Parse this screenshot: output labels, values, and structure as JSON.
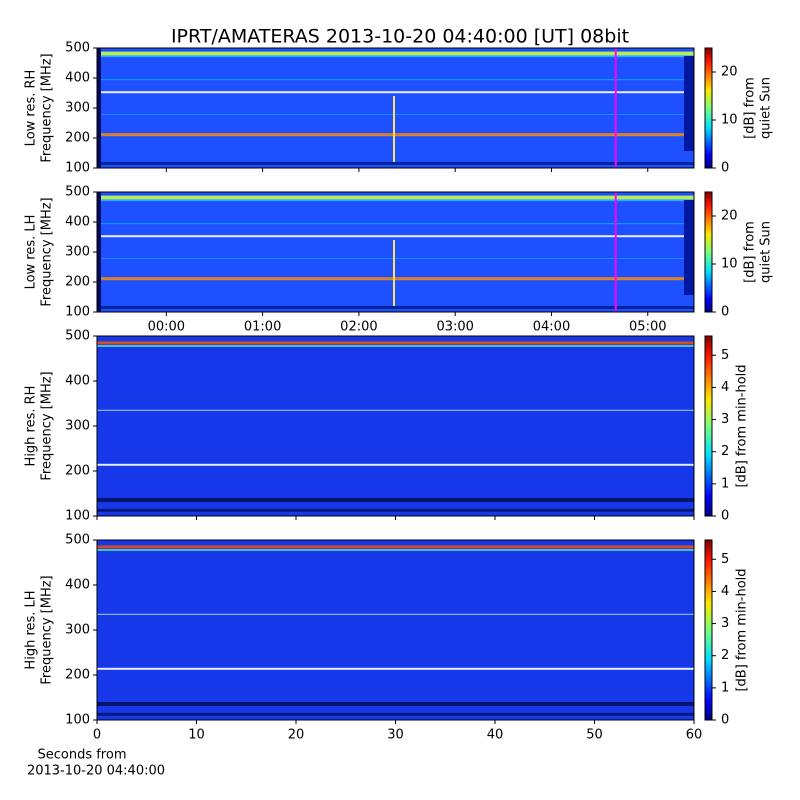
{
  "title": "IPRT/AMATERAS 2013-10-20 04:40:00 [UT]   08bit",
  "chart_data": [
    {
      "type": "heatmap",
      "ylabel": [
        "Low res. RH",
        "Frequency [MHz]"
      ],
      "ylim": [
        100,
        500
      ],
      "yticks": [
        100,
        200,
        300,
        400,
        500
      ],
      "xlim": [
        -0.72,
        5.48
      ],
      "xticks": [
        {
          "value": 0,
          "label": "00:00"
        },
        {
          "value": 1,
          "label": "01:00"
        },
        {
          "value": 2,
          "label": "02:00"
        },
        {
          "value": 3,
          "label": "03:00"
        },
        {
          "value": 4,
          "label": "04:00"
        },
        {
          "value": 5,
          "label": "05:00"
        }
      ],
      "show_xtick_labels": false,
      "vline_x": 4.667,
      "vline_color": "#ff00ff",
      "colorbar_label": [
        "[dB] from",
        "quiet Sun"
      ],
      "clim": [
        0,
        25
      ],
      "cticks": [
        0,
        10,
        20
      ]
    },
    {
      "type": "heatmap",
      "ylabel": [
        "Low res. LH",
        "Frequency [MHz]"
      ],
      "ylim": [
        100,
        500
      ],
      "yticks": [
        100,
        200,
        300,
        400,
        500
      ],
      "xlim": [
        -0.72,
        5.48
      ],
      "xticks": [
        {
          "value": 0,
          "label": "00:00"
        },
        {
          "value": 1,
          "label": "01:00"
        },
        {
          "value": 2,
          "label": "02:00"
        },
        {
          "value": 3,
          "label": "03:00"
        },
        {
          "value": 4,
          "label": "04:00"
        },
        {
          "value": 5,
          "label": "05:00"
        }
      ],
      "show_xtick_labels": true,
      "vline_x": 4.667,
      "vline_color": "#ff00ff",
      "colorbar_label": [
        "[dB] from",
        "quiet Sun"
      ],
      "clim": [
        0,
        25
      ],
      "cticks": [
        0,
        10,
        20
      ]
    },
    {
      "type": "heatmap",
      "ylabel": [
        "High res. RH",
        "Frequency [MHz]"
      ],
      "ylim": [
        100,
        500
      ],
      "yticks": [
        100,
        200,
        300,
        400,
        500
      ],
      "xlim": [
        0,
        60
      ],
      "xticks": [
        0,
        10,
        20,
        30,
        40,
        50,
        60
      ],
      "show_xtick_labels": false,
      "colorbar_label": [
        "[dB] from min-hold"
      ],
      "clim": [
        0,
        5.6
      ],
      "cticks": [
        0,
        1,
        2,
        3,
        4,
        5
      ]
    },
    {
      "type": "heatmap",
      "ylabel": [
        "High res. LH",
        "Frequency [MHz]"
      ],
      "ylim": [
        100,
        500
      ],
      "yticks": [
        100,
        200,
        300,
        400,
        500
      ],
      "xlim": [
        0,
        60
      ],
      "xticks": [
        0,
        10,
        20,
        30,
        40,
        50,
        60
      ],
      "show_xtick_labels": true,
      "xlabel": [
        "Seconds from",
        "2013-10-20 04:40:00"
      ],
      "colorbar_label": [
        "[dB] from min-hold"
      ],
      "clim": [
        0,
        5.6
      ],
      "cticks": [
        0,
        1,
        2,
        3,
        4,
        5
      ]
    }
  ]
}
